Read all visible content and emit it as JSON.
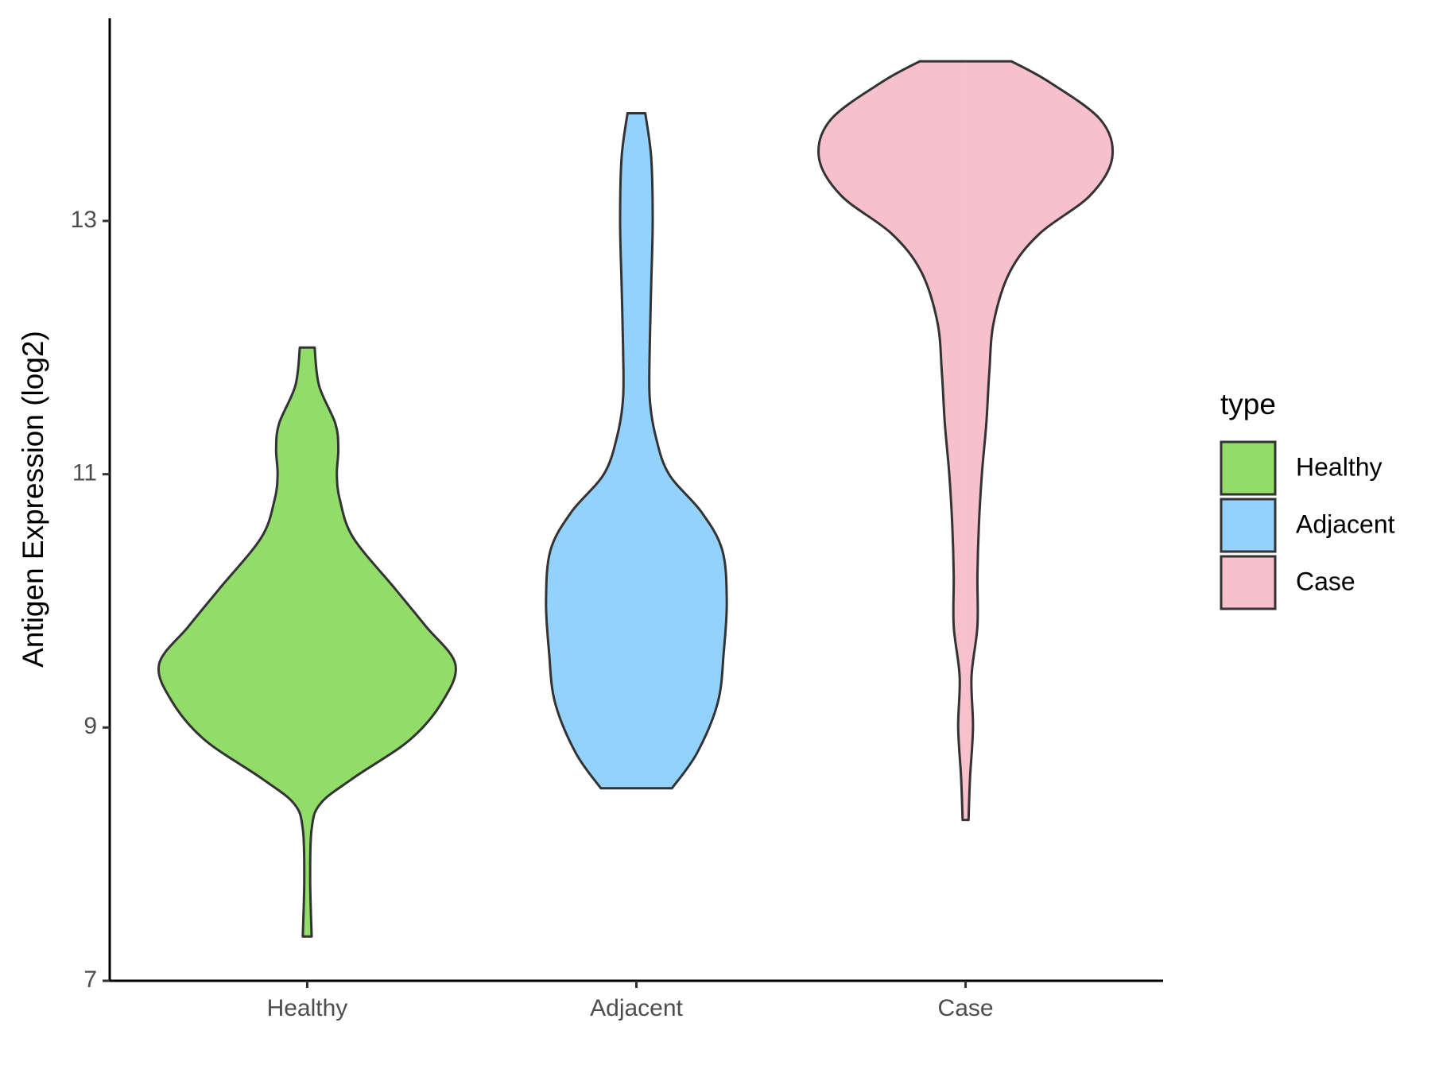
{
  "chart_data": {
    "type": "violin",
    "y_label": "Antigen Expression (log2)",
    "legend_title": "type",
    "categories": [
      "Healthy",
      "Adjacent",
      "Case"
    ],
    "ylim": [
      7,
      14.6
    ],
    "yticks": [
      7,
      9,
      11,
      13
    ],
    "series": [
      {
        "name": "Healthy",
        "color": "#92dc6a",
        "y": [
          7.35,
          7.8,
          8.2,
          8.4,
          8.6,
          8.9,
          9.2,
          9.5,
          9.8,
          10.1,
          10.5,
          10.8,
          11.0,
          11.2,
          11.4,
          11.7,
          12.0
        ],
        "density": [
          0.03,
          0.02,
          0.03,
          0.09,
          0.31,
          0.69,
          0.91,
          1.0,
          0.8,
          0.59,
          0.31,
          0.22,
          0.2,
          0.21,
          0.19,
          0.08,
          0.05
        ]
      },
      {
        "name": "Adjacent",
        "color": "#93d2fd",
        "y": [
          8.52,
          8.8,
          9.2,
          9.6,
          10.0,
          10.4,
          10.7,
          11.0,
          11.3,
          11.6,
          12.0,
          12.5,
          13.0,
          13.5,
          13.85
        ],
        "density": [
          0.24,
          0.41,
          0.55,
          0.59,
          0.61,
          0.58,
          0.44,
          0.22,
          0.13,
          0.09,
          0.09,
          0.1,
          0.11,
          0.1,
          0.06
        ]
      },
      {
        "name": "Case",
        "color": "#f7c0cb",
        "y": [
          8.27,
          8.6,
          9.0,
          9.4,
          9.8,
          10.2,
          10.6,
          11.0,
          11.4,
          11.8,
          12.2,
          12.6,
          12.9,
          13.2,
          13.5,
          13.8,
          14.1,
          14.26
        ],
        "density": [
          0.02,
          0.03,
          0.05,
          0.04,
          0.08,
          0.08,
          0.09,
          0.11,
          0.14,
          0.16,
          0.19,
          0.3,
          0.5,
          0.84,
          0.99,
          0.91,
          0.56,
          0.31
        ]
      }
    ]
  }
}
